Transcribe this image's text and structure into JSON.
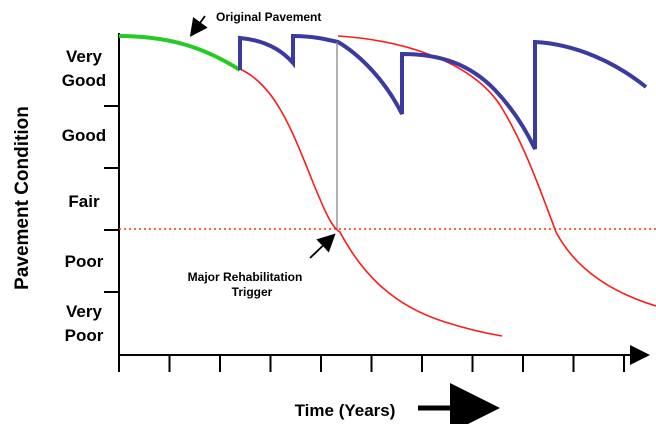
{
  "diagram": {
    "y_axis_title": "Pavement Condition",
    "x_axis_title": "Time (Years)",
    "condition_levels": [
      [
        "Very",
        "Good"
      ],
      [
        "Good"
      ],
      [
        "Fair"
      ],
      [
        "Poor"
      ],
      [
        "Very",
        "Poor"
      ]
    ],
    "annotations": {
      "original_pavement": "Original Pavement",
      "trigger_line1": "Major Rehabilitation",
      "trigger_line2": "Trigger"
    },
    "colors": {
      "original_pavement_curve": "#22cc22",
      "maintained_curve": "#3a3aa0",
      "deterioration_curve": "#ff1a1a",
      "trigger_threshold_line": "#ff3300",
      "axes": "#000000"
    },
    "x_tick_count": 11,
    "legend": "none",
    "grid": false
  }
}
